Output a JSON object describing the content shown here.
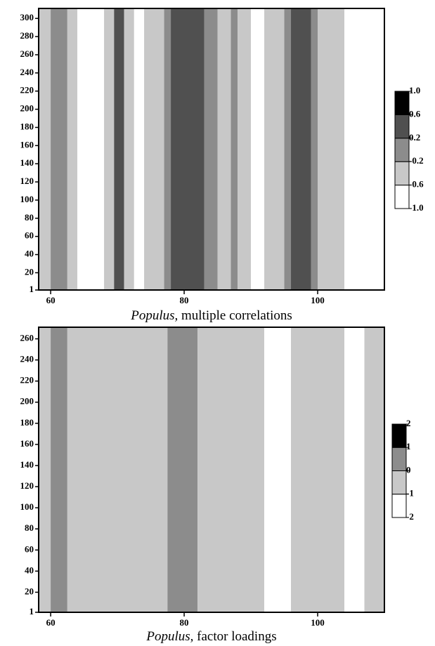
{
  "chart_data": [
    {
      "type": "contour",
      "caption_italic": "Populus,",
      "caption": "multiple correlations",
      "xlim": [
        58.2,
        110
      ],
      "xticks": [
        60,
        80,
        100
      ],
      "ylim": [
        1,
        311
      ],
      "yticks": [
        1,
        20,
        40,
        60,
        80,
        100,
        120,
        140,
        160,
        180,
        200,
        220,
        240,
        260,
        280,
        300
      ],
      "levels": [
        {
          "value": -1,
          "label": "-1.0"
        },
        -0.6,
        -0.2,
        0.2,
        0.6,
        {
          "value": 1,
          "label": "1.0"
        }
      ],
      "colors": [
        "#ffffff",
        "#c8c8c8",
        "#8c8c8c",
        "#505050",
        "#000000"
      ],
      "x_edges": [
        58.2,
        60,
        62.5,
        64,
        68,
        69.5,
        71,
        72.5,
        74,
        77,
        78,
        83,
        85,
        87,
        88,
        90,
        92,
        95,
        96,
        99,
        100,
        104,
        110
      ],
      "values": [
        -0.4,
        0,
        -0.4,
        -0.8,
        -0.4,
        0.4,
        -0.4,
        -0.8,
        -0.4,
        0,
        0.4,
        0,
        -0.4,
        0,
        -0.4,
        -0.8,
        -0.4,
        0,
        0.4,
        0,
        -0.4,
        -0.8
      ]
    },
    {
      "type": "contour",
      "caption_italic": "Populus,",
      "caption": "factor loadings",
      "xlim": [
        58.2,
        110
      ],
      "xticks": [
        60,
        80,
        100
      ],
      "ylim": [
        1,
        271
      ],
      "yticks": [
        1,
        20,
        40,
        60,
        80,
        100,
        120,
        140,
        160,
        180,
        200,
        220,
        240,
        260
      ],
      "levels": [
        -2,
        -1,
        0,
        1,
        2
      ],
      "colors": [
        "#ffffff",
        "#c8c8c8",
        "#8c8c8c",
        "#000000"
      ],
      "x_edges": [
        58.2,
        60,
        62.5,
        77.5,
        82,
        92,
        96,
        104,
        107,
        110
      ],
      "values": [
        -0.5,
        0.5,
        -0.5,
        0.5,
        -0.5,
        -1.5,
        -0.5,
        -1.5,
        -0.5
      ]
    }
  ]
}
